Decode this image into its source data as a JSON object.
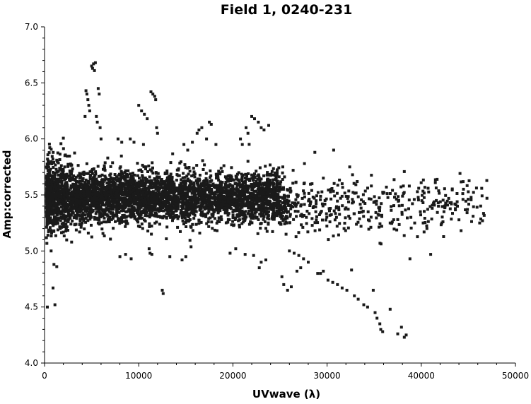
{
  "chart_data": {
    "type": "scatter",
    "title": "Field 1, 0240-231",
    "xlabel": "UVwave (λ)",
    "ylabel": "Amp:corrected",
    "xlim": [
      0,
      50000
    ],
    "ylim": [
      4.0,
      7.0
    ],
    "xticks": [
      0,
      10000,
      20000,
      30000,
      40000,
      50000
    ],
    "xtick_labels": [
      "0",
      "10000",
      "20000",
      "30000",
      "40000",
      "50000"
    ],
    "yticks": [
      4.0,
      4.5,
      5.0,
      5.5,
      6.0,
      6.5,
      7.0
    ],
    "ytick_labels": [
      "4.0",
      "4.5",
      "5.0",
      "5.5",
      "6.0",
      "6.5",
      "7.0"
    ],
    "grid": false,
    "marker_color": "#1a1a1a",
    "series": [
      {
        "bulk_band": {
          "x_range": [
            200,
            25000
          ],
          "center": 5.48,
          "spread": 0.11
        },
        "sparse_band": {
          "x_range": [
            25000,
            47000
          ],
          "center": 5.4,
          "spread": 0.12
        },
        "points": [
          [
            300,
            4.5
          ],
          [
            700,
            5.0
          ],
          [
            900,
            4.67
          ],
          [
            1000,
            4.88
          ],
          [
            1100,
            4.52
          ],
          [
            1300,
            4.86
          ],
          [
            5000,
            6.65
          ],
          [
            5100,
            6.63
          ],
          [
            5200,
            6.67
          ],
          [
            5400,
            6.68
          ],
          [
            5300,
            6.61
          ],
          [
            4400,
            6.43
          ],
          [
            4500,
            6.4
          ],
          [
            4600,
            6.35
          ],
          [
            4700,
            6.3
          ],
          [
            5700,
            6.45
          ],
          [
            5800,
            6.4
          ],
          [
            5500,
            6.2
          ],
          [
            5600,
            6.15
          ],
          [
            5900,
            6.1
          ],
          [
            6000,
            6.0
          ],
          [
            4300,
            6.2
          ],
          [
            4800,
            6.25
          ],
          [
            10000,
            6.3
          ],
          [
            10300,
            6.25
          ],
          [
            10600,
            6.22
          ],
          [
            10900,
            6.18
          ],
          [
            11300,
            6.42
          ],
          [
            11500,
            6.4
          ],
          [
            11700,
            6.38
          ],
          [
            11800,
            6.35
          ],
          [
            11900,
            6.1
          ],
          [
            12000,
            6.05
          ],
          [
            7800,
            6.0
          ],
          [
            8200,
            5.97
          ],
          [
            9100,
            6.0
          ],
          [
            9500,
            5.97
          ],
          [
            10500,
            5.95
          ],
          [
            12500,
            4.65
          ],
          [
            12600,
            4.62
          ],
          [
            14800,
            5.95
          ],
          [
            15200,
            5.9
          ],
          [
            15700,
            5.97
          ],
          [
            16200,
            6.05
          ],
          [
            16400,
            6.08
          ],
          [
            16700,
            6.1
          ],
          [
            17200,
            6.0
          ],
          [
            17500,
            6.15
          ],
          [
            17700,
            6.13
          ],
          [
            18200,
            5.95
          ],
          [
            21400,
            6.1
          ],
          [
            21600,
            6.05
          ],
          [
            22000,
            6.2
          ],
          [
            22300,
            6.18
          ],
          [
            22700,
            6.15
          ],
          [
            23000,
            6.1
          ],
          [
            23300,
            6.08
          ],
          [
            23800,
            6.12
          ],
          [
            20800,
            6.0
          ],
          [
            21000,
            5.95
          ],
          [
            8000,
            4.95
          ],
          [
            8600,
            4.97
          ],
          [
            9200,
            4.93
          ],
          [
            11200,
            4.98
          ],
          [
            11100,
            5.02
          ],
          [
            11400,
            4.97
          ],
          [
            13300,
            4.95
          ],
          [
            14600,
            4.92
          ],
          [
            15000,
            4.95
          ],
          [
            19700,
            4.98
          ],
          [
            20300,
            5.02
          ],
          [
            21300,
            4.97
          ],
          [
            22200,
            4.96
          ],
          [
            23500,
            4.92
          ],
          [
            23000,
            4.9
          ],
          [
            22800,
            4.85
          ],
          [
            26000,
            5.0
          ],
          [
            26500,
            4.98
          ],
          [
            27000,
            4.96
          ],
          [
            27500,
            4.93
          ],
          [
            28000,
            4.9
          ],
          [
            25200,
            4.77
          ],
          [
            25400,
            4.7
          ],
          [
            25800,
            4.65
          ],
          [
            26200,
            4.68
          ],
          [
            26800,
            4.82
          ],
          [
            27200,
            4.85
          ],
          [
            29000,
            4.8
          ],
          [
            29300,
            4.8
          ],
          [
            29600,
            4.82
          ],
          [
            30100,
            4.74
          ],
          [
            30600,
            4.72
          ],
          [
            31100,
            4.7
          ],
          [
            31600,
            4.67
          ],
          [
            32100,
            4.65
          ],
          [
            32600,
            4.83
          ],
          [
            33300,
            4.57
          ],
          [
            33900,
            4.52
          ],
          [
            34300,
            4.5
          ],
          [
            35100,
            4.45
          ],
          [
            35300,
            4.4
          ],
          [
            35600,
            4.35
          ],
          [
            35700,
            4.3
          ],
          [
            35900,
            4.28
          ],
          [
            36700,
            4.48
          ],
          [
            37500,
            4.26
          ],
          [
            37900,
            4.32
          ],
          [
            38200,
            4.23
          ],
          [
            38400,
            4.25
          ],
          [
            34900,
            4.65
          ],
          [
            32900,
            4.6
          ],
          [
            30700,
            5.9
          ],
          [
            32400,
            5.75
          ],
          [
            31600,
            5.6
          ],
          [
            32700,
            5.68
          ],
          [
            33200,
            5.62
          ],
          [
            34700,
            5.58
          ],
          [
            36300,
            5.57
          ],
          [
            38100,
            5.58
          ],
          [
            28700,
            5.88
          ],
          [
            38900,
            5.3
          ],
          [
            39300,
            5.25
          ],
          [
            39900,
            5.35
          ],
          [
            40200,
            5.25
          ],
          [
            40600,
            5.2
          ],
          [
            41600,
            5.45
          ],
          [
            41800,
            5.43
          ],
          [
            43200,
            5.42
          ],
          [
            44900,
            5.37
          ],
          [
            46200,
            5.25
          ],
          [
            46500,
            5.27
          ],
          [
            38800,
            4.93
          ],
          [
            41000,
            4.97
          ],
          [
            40300,
            5.17
          ],
          [
            30300,
            5.26
          ],
          [
            31000,
            5.3
          ],
          [
            31800,
            5.2
          ],
          [
            32300,
            5.31
          ],
          [
            33600,
            5.22
          ],
          [
            34500,
            5.27
          ],
          [
            35800,
            5.22
          ],
          [
            36700,
            5.25
          ],
          [
            37500,
            5.28
          ],
          [
            24700,
            5.7
          ],
          [
            25300,
            5.75
          ],
          [
            26400,
            5.72
          ],
          [
            27600,
            5.78
          ],
          [
            28400,
            5.6
          ],
          [
            29600,
            5.65
          ],
          [
            30400,
            5.55
          ],
          [
            28800,
            5.35
          ],
          [
            29500,
            5.42
          ],
          [
            27800,
            5.3
          ]
        ]
      }
    ]
  }
}
